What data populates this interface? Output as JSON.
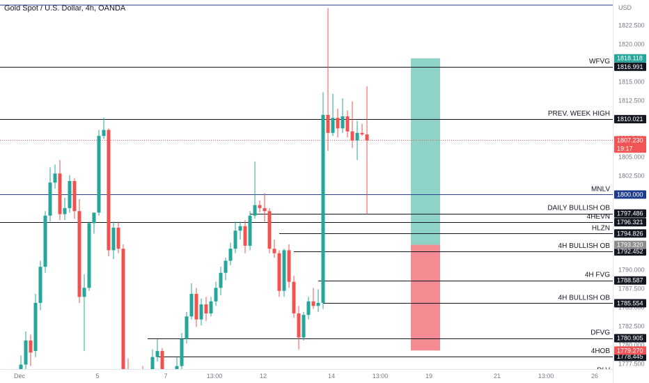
{
  "title": "Gold Spot / U.S. Dollar, 4h, OANDA",
  "colors": {
    "up": "#26a69a",
    "down": "#ef5350",
    "line": "#131722",
    "blue_line": "#2a3f8f",
    "target_zone": "#8fd3c8",
    "stop_zone": "#f48b93",
    "badge_dark": "#131722",
    "badge_green": "#26a69a",
    "badge_red": "#f05454",
    "badge_blue": "#1e3a8a",
    "badge_gray": "#8c8c8c"
  },
  "chart_data": {
    "type": "candlestick",
    "currency_label": "USD",
    "ylim": [
      1776.8,
      1825.5
    ],
    "y_ticks": [
      "1822.500",
      "1820.000",
      "1817.500",
      "1815.000",
      "1812.500",
      "1810.000",
      "1807.500",
      "1805.000",
      "1802.500",
      "1800.000",
      "1797.500",
      "1795.000",
      "1792.500",
      "1790.000",
      "1787.500",
      "1785.000",
      "1782.500",
      "1780.000",
      "1777.500"
    ],
    "x_ticks": [
      {
        "label": "Dec",
        "bar": 0
      },
      {
        "label": "5",
        "bar": 16
      },
      {
        "label": "7",
        "bar": 30
      },
      {
        "label": "13:00",
        "bar": 40
      },
      {
        "label": "12",
        "bar": 50
      },
      {
        "label": "14",
        "bar": 64
      },
      {
        "label": "13:00",
        "bar": 74
      },
      {
        "label": "19",
        "bar": 84
      },
      {
        "label": "21",
        "bar": 98
      },
      {
        "label": "13:00",
        "bar": 108
      },
      {
        "label": "26",
        "bar": 118
      }
    ],
    "candles": [
      {
        "o": 1774.5,
        "h": 1778.6,
        "l": 1772.5,
        "c": 1777.4
      },
      {
        "o": 1777.4,
        "h": 1781.8,
        "l": 1776.4,
        "c": 1780.6
      },
      {
        "o": 1780.6,
        "h": 1781.4,
        "l": 1777.2,
        "c": 1779.0
      },
      {
        "o": 1779.2,
        "h": 1786.8,
        "l": 1778.4,
        "c": 1785.6
      },
      {
        "o": 1785.6,
        "h": 1791.2,
        "l": 1784.6,
        "c": 1790.4
      },
      {
        "o": 1790.4,
        "h": 1797.8,
        "l": 1789.6,
        "c": 1797.2
      },
      {
        "o": 1797.2,
        "h": 1803.6,
        "l": 1796.4,
        "c": 1801.6
      },
      {
        "o": 1801.6,
        "h": 1804.0,
        "l": 1800.8,
        "c": 1802.8
      },
      {
        "o": 1802.8,
        "h": 1804.6,
        "l": 1796.6,
        "c": 1797.4
      },
      {
        "o": 1797.4,
        "h": 1799.6,
        "l": 1796.6,
        "c": 1798.2
      },
      {
        "o": 1798.2,
        "h": 1802.6,
        "l": 1797.6,
        "c": 1801.8
      },
      {
        "o": 1801.8,
        "h": 1802.2,
        "l": 1796.8,
        "c": 1797.8
      },
      {
        "o": 1797.8,
        "h": 1799.4,
        "l": 1785.6,
        "c": 1786.4
      },
      {
        "o": 1786.4,
        "h": 1789.4,
        "l": 1779.2,
        "c": 1787.6
      },
      {
        "o": 1787.6,
        "h": 1796.4,
        "l": 1787.2,
        "c": 1796.2
      },
      {
        "o": 1796.2,
        "h": 1797.6,
        "l": 1794.8,
        "c": 1797.6
      },
      {
        "o": 1797.6,
        "h": 1808.6,
        "l": 1797.2,
        "c": 1807.8
      },
      {
        "o": 1807.8,
        "h": 1810.2,
        "l": 1807.4,
        "c": 1808.6
      },
      {
        "o": 1808.6,
        "h": 1808.8,
        "l": 1791.8,
        "c": 1792.6
      },
      {
        "o": 1792.6,
        "h": 1796.4,
        "l": 1791.4,
        "c": 1795.6
      },
      {
        "o": 1795.6,
        "h": 1796.4,
        "l": 1792.2,
        "c": 1792.8
      },
      {
        "o": 1792.8,
        "h": 1793.4,
        "l": 1776.4,
        "c": 1776.6
      },
      {
        "o": 1776.6,
        "h": 1778.2,
        "l": 1773.4,
        "c": 1774.4
      },
      {
        "o": 1774.4,
        "h": 1775.4,
        "l": 1772.6,
        "c": 1773.2
      },
      {
        "o": 1773.2,
        "h": 1776.4,
        "l": 1772.8,
        "c": 1776.0
      },
      {
        "o": 1776.0,
        "h": 1777.2,
        "l": 1774.6,
        "c": 1775.2
      },
      {
        "o": 1775.2,
        "h": 1776.4,
        "l": 1773.6,
        "c": 1774.4
      },
      {
        "o": 1774.4,
        "h": 1779.4,
        "l": 1774.0,
        "c": 1778.4
      },
      {
        "o": 1778.4,
        "h": 1780.8,
        "l": 1777.8,
        "c": 1779.2
      },
      {
        "o": 1779.2,
        "h": 1779.6,
        "l": 1774.4,
        "c": 1775.4
      },
      {
        "o": 1775.4,
        "h": 1776.4,
        "l": 1773.8,
        "c": 1774.4
      },
      {
        "o": 1774.4,
        "h": 1776.6,
        "l": 1773.2,
        "c": 1775.6
      },
      {
        "o": 1775.6,
        "h": 1778.4,
        "l": 1775.2,
        "c": 1777.2
      },
      {
        "o": 1777.2,
        "h": 1781.6,
        "l": 1776.8,
        "c": 1780.8
      },
      {
        "o": 1780.8,
        "h": 1784.4,
        "l": 1780.2,
        "c": 1783.8
      },
      {
        "o": 1783.8,
        "h": 1788.2,
        "l": 1783.4,
        "c": 1786.8
      },
      {
        "o": 1786.8,
        "h": 1787.6,
        "l": 1782.4,
        "c": 1783.4
      },
      {
        "o": 1783.4,
        "h": 1786.2,
        "l": 1782.6,
        "c": 1785.4
      },
      {
        "o": 1785.4,
        "h": 1786.4,
        "l": 1783.2,
        "c": 1784.2
      },
      {
        "o": 1784.2,
        "h": 1786.4,
        "l": 1783.8,
        "c": 1785.8
      },
      {
        "o": 1785.8,
        "h": 1788.4,
        "l": 1785.2,
        "c": 1787.6
      },
      {
        "o": 1787.6,
        "h": 1790.4,
        "l": 1786.6,
        "c": 1789.6
      },
      {
        "o": 1789.6,
        "h": 1791.6,
        "l": 1788.6,
        "c": 1791.2
      },
      {
        "o": 1791.2,
        "h": 1793.6,
        "l": 1790.6,
        "c": 1792.8
      },
      {
        "o": 1792.8,
        "h": 1796.4,
        "l": 1792.2,
        "c": 1795.2
      },
      {
        "o": 1795.2,
        "h": 1796.4,
        "l": 1794.0,
        "c": 1795.8
      },
      {
        "o": 1795.8,
        "h": 1796.6,
        "l": 1792.2,
        "c": 1793.2
      },
      {
        "o": 1793.2,
        "h": 1797.8,
        "l": 1792.6,
        "c": 1797.2
      },
      {
        "o": 1797.2,
        "h": 1804.4,
        "l": 1796.8,
        "c": 1798.6
      },
      {
        "o": 1798.6,
        "h": 1799.2,
        "l": 1797.6,
        "c": 1798.2
      },
      {
        "o": 1798.2,
        "h": 1800.2,
        "l": 1796.4,
        "c": 1797.8
      },
      {
        "o": 1797.8,
        "h": 1798.2,
        "l": 1792.2,
        "c": 1792.8
      },
      {
        "o": 1792.8,
        "h": 1794.0,
        "l": 1791.6,
        "c": 1792.2
      },
      {
        "o": 1792.2,
        "h": 1792.6,
        "l": 1786.4,
        "c": 1787.2
      },
      {
        "o": 1787.2,
        "h": 1792.8,
        "l": 1786.4,
        "c": 1792.6
      },
      {
        "o": 1792.6,
        "h": 1793.4,
        "l": 1787.6,
        "c": 1788.4
      },
      {
        "o": 1788.4,
        "h": 1789.2,
        "l": 1783.6,
        "c": 1784.2
      },
      {
        "o": 1784.2,
        "h": 1785.2,
        "l": 1779.4,
        "c": 1781.0
      },
      {
        "o": 1781.0,
        "h": 1784.4,
        "l": 1780.6,
        "c": 1784.0
      },
      {
        "o": 1784.0,
        "h": 1786.4,
        "l": 1783.4,
        "c": 1785.8
      },
      {
        "o": 1785.8,
        "h": 1787.6,
        "l": 1784.8,
        "c": 1785.2
      },
      {
        "o": 1785.2,
        "h": 1787.4,
        "l": 1784.4,
        "c": 1785.6
      },
      {
        "o": 1785.6,
        "h": 1813.6,
        "l": 1784.8,
        "c": 1810.6
      },
      {
        "o": 1810.6,
        "h": 1824.8,
        "l": 1805.8,
        "c": 1808.2
      },
      {
        "o": 1808.2,
        "h": 1813.4,
        "l": 1807.8,
        "c": 1810.2
      },
      {
        "o": 1810.2,
        "h": 1811.4,
        "l": 1807.6,
        "c": 1808.8
      },
      {
        "o": 1808.8,
        "h": 1812.8,
        "l": 1808.2,
        "c": 1810.4
      },
      {
        "o": 1810.4,
        "h": 1811.2,
        "l": 1807.6,
        "c": 1808.4
      },
      {
        "o": 1808.4,
        "h": 1812.4,
        "l": 1806.2,
        "c": 1807.2
      },
      {
        "o": 1807.2,
        "h": 1809.8,
        "l": 1804.6,
        "c": 1808.2
      },
      {
        "o": 1808.2,
        "h": 1809.4,
        "l": 1807.8,
        "c": 1808.0
      },
      {
        "o": 1808.0,
        "h": 1814.4,
        "l": 1797.4,
        "c": 1807.2
      }
    ],
    "levels": [
      {
        "label": "WFVG",
        "price": 1816.991,
        "badge": "1816.991",
        "style": "dark",
        "x_start_bar": -1
      },
      {
        "label": "PREV. WEEK HIGH",
        "price": 1810.021,
        "badge": "1810.021",
        "style": "dark",
        "x_start_bar": -1
      },
      {
        "label": "MNLV",
        "price": 1800.0,
        "badge": "1800.000",
        "style": "blue",
        "x_start_bar": -1
      },
      {
        "label": "DAILY BULLISH OB",
        "price": 1797.486,
        "badge": "1797.486",
        "style": "dark",
        "x_start_bar": 47
      },
      {
        "label": "4HEVN",
        "price": 1796.321,
        "badge": "1796.321",
        "style": "dark",
        "x_start_bar": -1
      },
      {
        "label": "HLZN",
        "price": 1794.826,
        "badge": "1794.826",
        "style": "dark",
        "x_start_bar": 53
      },
      {
        "label": "4H BULLISH OB",
        "price": 1792.452,
        "badge": "1792.452",
        "style": "dark",
        "x_start_bar": 56
      },
      {
        "label": "4H FVG",
        "price": 1788.587,
        "badge": "1788.587",
        "style": "dark",
        "x_start_bar": 61
      },
      {
        "label": "4H BULLISH OB",
        "price": 1785.554,
        "badge": "1785.554",
        "style": "dark",
        "x_start_bar": 62
      },
      {
        "label": "DFVG",
        "price": 1780.905,
        "badge": "1780.905",
        "style": "dark",
        "x_start_bar": 26
      },
      {
        "label": "4HOB",
        "price": 1778.445,
        "badge": "1778.445",
        "style": "dark",
        "x_start_bar": 28
      },
      {
        "label": "DLV",
        "price": 1775.9,
        "badge": "",
        "style": "blue",
        "x_start_bar": -1
      }
    ],
    "top_line_price": 1825.2,
    "position": {
      "entry": 1793.32,
      "target": 1818.118,
      "stop": 1779.27,
      "start_bar": 80,
      "end_bar": 86
    },
    "extra_badges": [
      {
        "price": 1818.118,
        "text": "1818.118",
        "style": "green"
      },
      {
        "price": 1793.32,
        "text": "1793.320",
        "style": "gray"
      },
      {
        "price": 1779.27,
        "text": "1779.270",
        "style": "red"
      }
    ],
    "current_price": {
      "price": 1807.23,
      "text": "1807.230",
      "countdown": "19:17"
    }
  }
}
